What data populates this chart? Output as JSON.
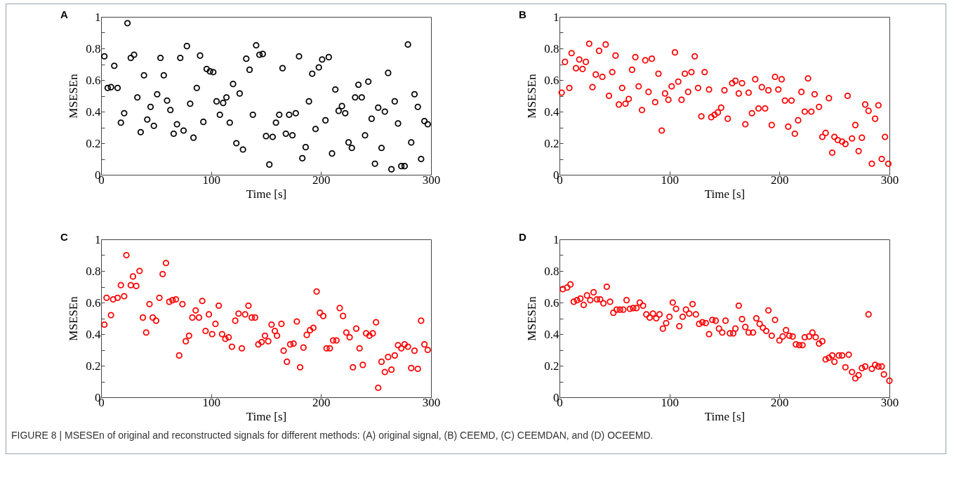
{
  "chart_data": [
    {
      "type": "scatter",
      "title": "A",
      "xlabel": "Time [s]",
      "ylabel": "MSESEn",
      "color": "#000000",
      "marker": "circle",
      "xlim": [
        0,
        300
      ],
      "ylim": [
        0,
        1
      ],
      "xticks": [
        0,
        100,
        200,
        300
      ],
      "yticks": [
        0,
        {
          "value": 0.1,
          "label": null
        },
        0.2,
        {
          "value": 0.3,
          "label": null
        },
        0.4,
        {
          "value": 0.5,
          "label": null
        },
        0.6,
        {
          "value": 0.7,
          "label": null
        },
        0.8,
        {
          "value": 0.9,
          "label": null
        },
        1
      ],
      "x": [
        3,
        6,
        9,
        12,
        15,
        18,
        21,
        24,
        27,
        30,
        33,
        36,
        39,
        42,
        45,
        48,
        51,
        54,
        57,
        60,
        63,
        66,
        69,
        72,
        75,
        78,
        81,
        84,
        87,
        90,
        93,
        96,
        99,
        102,
        105,
        108,
        111,
        114,
        117,
        120,
        123,
        126,
        129,
        132,
        135,
        138,
        141,
        144,
        147,
        150,
        153,
        156,
        159,
        162,
        165,
        168,
        171,
        174,
        177,
        180,
        183,
        186,
        189,
        192,
        195,
        198,
        201,
        204,
        207,
        210,
        213,
        216,
        219,
        222,
        225,
        228,
        231,
        234,
        237,
        240,
        243,
        246,
        249,
        252,
        255,
        258,
        261,
        264,
        267,
        270,
        273,
        276,
        279,
        282,
        285,
        288,
        291,
        294,
        297
      ],
      "values": [
        0.75,
        0.55,
        0.555,
        0.69,
        0.55,
        0.33,
        0.39,
        0.96,
        0.74,
        0.76,
        0.49,
        0.27,
        0.63,
        0.35,
        0.43,
        0.31,
        0.51,
        0.74,
        0.63,
        0.47,
        0.41,
        0.26,
        0.32,
        0.74,
        0.28,
        0.815,
        0.45,
        0.235,
        0.55,
        0.755,
        0.335,
        0.67,
        0.655,
        0.65,
        0.465,
        0.38,
        0.455,
        0.49,
        0.33,
        0.575,
        0.2,
        0.515,
        0.16,
        0.735,
        0.665,
        0.38,
        0.82,
        0.76,
        0.765,
        0.245,
        0.065,
        0.24,
        0.33,
        0.38,
        0.675,
        0.26,
        0.38,
        0.25,
        0.39,
        0.75,
        0.105,
        0.175,
        0.465,
        0.64,
        0.29,
        0.68,
        0.73,
        0.345,
        0.745,
        0.135,
        0.54,
        0.405,
        0.435,
        0.39,
        0.205,
        0.17,
        0.49,
        0.57,
        0.49,
        0.25,
        0.59,
        0.355,
        0.07,
        0.425,
        0.17,
        0.4,
        0.645,
        0.035,
        0.465,
        0.325,
        0.055,
        0.055,
        0.825,
        0.205,
        0.51,
        0.43,
        0.1,
        0.34,
        0.32
      ]
    },
    {
      "type": "scatter",
      "title": "B",
      "xlabel": "Time [s]",
      "ylabel": "MSESEn",
      "color": "#ff0000",
      "marker": "circle",
      "xlim": [
        0,
        300
      ],
      "ylim": [
        0,
        1
      ],
      "xticks": [
        0,
        100,
        200,
        300
      ],
      "yticks": [
        0,
        {
          "value": 0.1,
          "label": null
        },
        0.2,
        {
          "value": 0.3,
          "label": null
        },
        0.4,
        {
          "value": 0.5,
          "label": null
        },
        0.6,
        {
          "value": 0.7,
          "label": null
        },
        0.8,
        {
          "value": 0.9,
          "label": null
        },
        1
      ],
      "x": [
        2,
        5,
        9,
        11,
        15,
        18,
        21,
        24,
        27,
        30,
        33,
        36,
        39,
        42,
        45,
        48,
        51,
        54,
        57,
        60,
        63,
        66,
        69,
        72,
        75,
        78,
        81,
        84,
        87,
        90,
        93,
        96,
        99,
        102,
        105,
        108,
        111,
        114,
        117,
        120,
        123,
        126,
        129,
        132,
        136,
        138,
        141,
        144,
        147,
        150,
        153,
        157,
        160,
        163,
        166,
        169,
        172,
        175,
        178,
        181,
        184,
        187,
        190,
        193,
        196,
        199,
        202,
        205,
        208,
        211,
        214,
        217,
        220,
        223,
        226,
        229,
        232,
        236,
        239,
        242,
        245,
        248,
        250,
        253,
        257,
        260,
        262,
        266,
        269,
        272,
        275,
        278,
        281,
        284,
        287,
        290,
        293,
        296,
        299
      ],
      "values": [
        0.52,
        0.715,
        0.55,
        0.77,
        0.675,
        0.73,
        0.67,
        0.715,
        0.83,
        0.555,
        0.635,
        0.785,
        0.62,
        0.825,
        0.5,
        0.65,
        0.755,
        0.445,
        0.55,
        0.45,
        0.48,
        0.665,
        0.745,
        0.56,
        0.41,
        0.725,
        0.525,
        0.735,
        0.46,
        0.64,
        0.28,
        0.515,
        0.475,
        0.56,
        0.775,
        0.59,
        0.475,
        0.64,
        0.525,
        0.65,
        0.75,
        0.55,
        0.37,
        0.65,
        0.54,
        0.365,
        0.38,
        0.395,
        0.425,
        0.535,
        0.355,
        0.58,
        0.595,
        0.515,
        0.58,
        0.32,
        0.52,
        0.39,
        0.605,
        0.42,
        0.555,
        0.42,
        0.535,
        0.315,
        0.62,
        0.54,
        0.605,
        0.47,
        0.305,
        0.47,
        0.26,
        0.345,
        0.525,
        0.4,
        0.61,
        0.4,
        0.51,
        0.43,
        0.24,
        0.265,
        0.485,
        0.14,
        0.24,
        0.22,
        0.21,
        0.195,
        0.5,
        0.23,
        0.315,
        0.15,
        0.235,
        0.445,
        0.405,
        0.07,
        0.355,
        0.44,
        0.1,
        0.24,
        0.07
      ]
    },
    {
      "type": "scatter",
      "title": "C",
      "xlabel": "Time [s]",
      "ylabel": "MSESEn",
      "color": "#ff0000",
      "marker": "circle",
      "xlim": [
        0,
        300
      ],
      "ylim": [
        0,
        1
      ],
      "xticks": [
        0,
        100,
        200,
        300
      ],
      "yticks": [
        0,
        {
          "value": 0.1,
          "label": null
        },
        0.2,
        {
          "value": 0.3,
          "label": null
        },
        0.4,
        {
          "value": 0.5,
          "label": null
        },
        0.6,
        {
          "value": 0.7,
          "label": null
        },
        0.8,
        {
          "value": 0.9,
          "label": null
        },
        1
      ],
      "x": [
        3,
        5,
        9,
        11,
        15,
        18,
        21,
        23,
        27,
        29,
        32,
        35,
        38,
        41,
        44,
        47,
        50,
        53,
        56,
        59,
        62,
        65,
        68,
        71,
        74,
        77,
        80,
        83,
        86,
        89,
        92,
        95,
        98,
        101,
        104,
        107,
        110,
        113,
        116,
        119,
        122,
        125,
        128,
        131,
        134,
        137,
        140,
        143,
        146,
        149,
        152,
        155,
        158,
        160,
        164,
        166,
        169,
        172,
        175,
        178,
        181,
        184,
        187,
        190,
        193,
        196,
        199,
        202,
        205,
        208,
        211,
        214,
        217,
        220,
        223,
        226,
        229,
        232,
        235,
        238,
        241,
        244,
        247,
        250,
        252,
        255,
        258,
        261,
        264,
        267,
        270,
        273,
        276,
        279,
        282,
        285,
        288,
        291,
        294,
        297
      ],
      "values": [
        0.46,
        0.63,
        0.52,
        0.62,
        0.63,
        0.71,
        0.64,
        0.9,
        0.71,
        0.765,
        0.705,
        0.8,
        0.505,
        0.41,
        0.59,
        0.505,
        0.485,
        0.63,
        0.78,
        0.85,
        0.605,
        0.615,
        0.62,
        0.265,
        0.59,
        0.355,
        0.39,
        0.505,
        0.55,
        0.505,
        0.61,
        0.42,
        0.525,
        0.4,
        0.465,
        0.58,
        0.4,
        0.37,
        0.38,
        0.32,
        0.485,
        0.53,
        0.31,
        0.525,
        0.58,
        0.505,
        0.505,
        0.335,
        0.35,
        0.39,
        0.355,
        0.46,
        0.42,
        0.39,
        0.465,
        0.295,
        0.225,
        0.335,
        0.34,
        0.48,
        0.19,
        0.315,
        0.395,
        0.425,
        0.44,
        0.67,
        0.535,
        0.515,
        0.31,
        0.31,
        0.36,
        0.36,
        0.565,
        0.515,
        0.41,
        0.38,
        0.19,
        0.435,
        0.31,
        0.205,
        0.405,
        0.39,
        0.405,
        0.475,
        0.06,
        0.225,
        0.16,
        0.255,
        0.175,
        0.265,
        0.33,
        0.31,
        0.335,
        0.32,
        0.185,
        0.295,
        0.18,
        0.485,
        0.335,
        0.3
      ]
    },
    {
      "type": "scatter",
      "title": "D",
      "xlabel": "Time [s]",
      "ylabel": "MSESEn",
      "color": "#ff0000",
      "marker": "circle",
      "xlim": [
        0,
        300
      ],
      "ylim": [
        0,
        1
      ],
      "xticks": [
        0,
        100,
        200,
        300
      ],
      "yticks": [
        0,
        {
          "value": 0.1,
          "label": null
        },
        0.2,
        {
          "value": 0.3,
          "label": null
        },
        0.4,
        {
          "value": 0.5,
          "label": null
        },
        0.6,
        {
          "value": 0.7,
          "label": null
        },
        0.8,
        {
          "value": 0.9,
          "label": null
        },
        1
      ],
      "annotations": [
        "FIGURE 8 | MSESEn of original and reconstructed signals for different methods: (A) original signal, (B) CEEMD, (C) CEEMDAN, and (D) OCEEMD."
      ],
      "x": [
        3,
        7,
        10,
        13,
        16,
        19,
        22,
        25,
        28,
        31,
        34,
        37,
        40,
        43,
        46,
        49,
        52,
        55,
        58,
        61,
        64,
        67,
        70,
        73,
        76,
        79,
        82,
        85,
        88,
        91,
        94,
        97,
        100,
        103,
        106,
        109,
        112,
        115,
        118,
        121,
        124,
        127,
        130,
        133,
        136,
        139,
        142,
        145,
        148,
        151,
        155,
        158,
        160,
        163,
        166,
        169,
        172,
        176,
        179,
        182,
        185,
        188,
        190,
        193,
        196,
        200,
        203,
        206,
        209,
        212,
        215,
        218,
        221,
        223,
        227,
        230,
        233,
        236,
        239,
        242,
        245,
        248,
        250,
        254,
        257,
        260,
        263,
        266,
        269,
        272,
        275,
        278,
        281,
        284,
        287,
        290,
        293,
        295,
        300
      ],
      "values": [
        0.685,
        0.695,
        0.715,
        0.605,
        0.615,
        0.625,
        0.585,
        0.645,
        0.615,
        0.665,
        0.62,
        0.62,
        0.595,
        0.7,
        0.605,
        0.535,
        0.555,
        0.555,
        0.555,
        0.615,
        0.56,
        0.565,
        0.565,
        0.6,
        0.58,
        0.525,
        0.505,
        0.53,
        0.5,
        0.525,
        0.435,
        0.47,
        0.51,
        0.6,
        0.56,
        0.45,
        0.51,
        0.555,
        0.53,
        0.59,
        0.525,
        0.465,
        0.475,
        0.47,
        0.4,
        0.49,
        0.485,
        0.435,
        0.41,
        0.485,
        0.405,
        0.405,
        0.435,
        0.58,
        0.495,
        0.445,
        0.41,
        0.41,
        0.5,
        0.465,
        0.44,
        0.42,
        0.55,
        0.39,
        0.49,
        0.36,
        0.385,
        0.425,
        0.39,
        0.385,
        0.335,
        0.33,
        0.33,
        0.38,
        0.385,
        0.41,
        0.38,
        0.34,
        0.355,
        0.24,
        0.25,
        0.265,
        0.225,
        0.265,
        0.265,
        0.19,
        0.27,
        0.16,
        0.12,
        0.14,
        0.185,
        0.195,
        0.525,
        0.18,
        0.205,
        0.195,
        0.195,
        0.145,
        0.105
      ]
    }
  ]
}
